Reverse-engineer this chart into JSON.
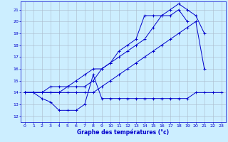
{
  "title": "Graphe des températures (°c)",
  "bg_color": "#cceeff",
  "grid_color": "#aabbcc",
  "line_color": "#0000cc",
  "xlim": [
    -0.5,
    23.5
  ],
  "ylim": [
    11.5,
    21.7
  ],
  "xticks": [
    0,
    1,
    2,
    3,
    4,
    5,
    6,
    7,
    8,
    9,
    10,
    11,
    12,
    13,
    14,
    15,
    16,
    17,
    18,
    19,
    20,
    21,
    22,
    23
  ],
  "yticks": [
    12,
    13,
    14,
    15,
    16,
    17,
    18,
    19,
    20,
    21
  ],
  "series": [
    {
      "x": [
        0,
        1,
        2,
        3,
        4,
        5,
        6,
        7,
        8,
        9,
        10,
        11,
        12,
        13,
        14,
        15,
        16,
        17,
        18,
        19,
        20,
        21,
        22,
        23
      ],
      "y": [
        14,
        14,
        13.5,
        13.2,
        12.5,
        12.5,
        12.5,
        13.0,
        15.5,
        13.5,
        13.5,
        13.5,
        13.5,
        13.5,
        13.5,
        13.5,
        13.5,
        13.5,
        13.5,
        13.5,
        14,
        14,
        14,
        14
      ]
    },
    {
      "x": [
        0,
        1,
        2,
        3,
        4,
        5,
        6,
        7,
        8,
        9,
        10,
        11,
        12,
        13,
        14,
        15,
        16,
        17,
        18,
        19,
        20,
        21
      ],
      "y": [
        14,
        14,
        14,
        14,
        14,
        14,
        14,
        14,
        14,
        14.5,
        15,
        15.5,
        16,
        16.5,
        17,
        17.5,
        18,
        18.5,
        19,
        19.5,
        20,
        16
      ]
    },
    {
      "x": [
        0,
        1,
        2,
        3,
        4,
        5,
        6,
        7,
        8,
        9,
        10,
        11,
        12,
        13,
        14,
        15,
        16,
        17,
        18,
        19
      ],
      "y": [
        14,
        14,
        14,
        14.5,
        14.5,
        14.5,
        14.5,
        14.5,
        15,
        16,
        16.5,
        17.5,
        18,
        18.5,
        20.5,
        20.5,
        20.5,
        20.5,
        21,
        20
      ]
    },
    {
      "x": [
        0,
        1,
        2,
        3,
        4,
        5,
        6,
        7,
        8,
        9,
        10,
        11,
        12,
        13,
        14,
        15,
        16,
        17,
        18,
        19,
        20,
        21
      ],
      "y": [
        14,
        14,
        14,
        14,
        14,
        14.5,
        15,
        15.5,
        16,
        16,
        16.5,
        17,
        17.5,
        18,
        18.5,
        19.5,
        20.5,
        21,
        21.5,
        21,
        20.5,
        19
      ]
    }
  ]
}
